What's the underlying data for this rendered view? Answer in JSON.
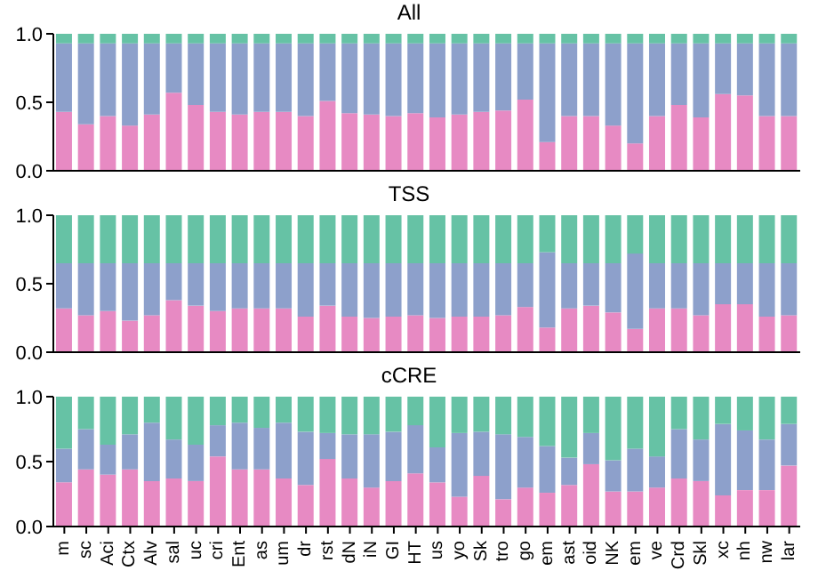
{
  "chart_data": [
    {
      "type": "bar",
      "title": "All",
      "stacked": true,
      "tick_labels": "y",
      "categories": [
        null,
        null,
        null,
        null,
        null,
        null,
        null,
        null,
        null,
        null,
        null,
        null,
        null,
        null,
        null,
        null,
        null,
        null,
        null,
        null,
        null,
        null,
        null,
        null,
        null,
        null,
        null,
        null,
        null,
        null,
        null,
        null,
        null,
        null
      ],
      "ylim": [
        0,
        1
      ],
      "yticks": [
        {
          "value": 0,
          "label": "0.0"
        },
        {
          "value": 0.5,
          "label": "0.5"
        },
        {
          "value": 1,
          "label": "1.0"
        }
      ],
      "series": [
        {
          "color": "#e78ac3",
          "values": [
            0.43,
            0.34,
            0.4,
            0.33,
            0.41,
            0.57,
            0.48,
            0.43,
            0.41,
            0.43,
            0.43,
            0.4,
            0.51,
            0.42,
            0.41,
            0.4,
            0.42,
            0.39,
            0.41,
            0.43,
            0.44,
            0.52,
            0.21,
            0.4,
            0.4,
            0.33,
            0.2,
            0.4,
            0.48,
            0.39,
            0.56,
            0.55,
            0.4,
            0.4
          ]
        },
        {
          "color": "#8da0cb",
          "values": [
            0.5,
            0.59,
            0.53,
            0.6,
            0.52,
            0.36,
            0.45,
            0.5,
            0.52,
            0.5,
            0.5,
            0.53,
            0.42,
            0.51,
            0.52,
            0.53,
            0.51,
            0.54,
            0.52,
            0.5,
            0.49,
            0.41,
            0.72,
            0.53,
            0.53,
            0.6,
            0.73,
            0.53,
            0.45,
            0.54,
            0.37,
            0.38,
            0.53,
            0.53
          ]
        },
        {
          "color": "#66c2a5",
          "values": [
            0.07,
            0.07,
            0.07,
            0.07,
            0.07,
            0.07,
            0.07,
            0.07,
            0.07,
            0.07,
            0.07,
            0.07,
            0.07,
            0.07,
            0.07,
            0.07,
            0.07,
            0.07,
            0.07,
            0.07,
            0.07,
            0.07,
            0.07,
            0.07,
            0.07,
            0.07,
            0.07,
            0.07,
            0.07,
            0.07,
            0.07,
            0.07,
            0.07,
            0.07
          ]
        }
      ]
    },
    {
      "type": "bar",
      "title": "TSS",
      "stacked": true,
      "tick_labels": "y",
      "categories": [
        null,
        null,
        null,
        null,
        null,
        null,
        null,
        null,
        null,
        null,
        null,
        null,
        null,
        null,
        null,
        null,
        null,
        null,
        null,
        null,
        null,
        null,
        null,
        null,
        null,
        null,
        null,
        null,
        null,
        null,
        null,
        null,
        null,
        null
      ],
      "ylim": [
        0,
        1
      ],
      "yticks": [
        {
          "value": 0,
          "label": "0.0"
        },
        {
          "value": 0.5,
          "label": "0.5"
        },
        {
          "value": 1,
          "label": "1.0"
        }
      ],
      "series": [
        {
          "color": "#e78ac3",
          "values": [
            0.32,
            0.27,
            0.3,
            0.23,
            0.27,
            0.38,
            0.34,
            0.3,
            0.32,
            0.32,
            0.32,
            0.26,
            0.34,
            0.26,
            0.25,
            0.26,
            0.27,
            0.25,
            0.26,
            0.26,
            0.27,
            0.33,
            0.18,
            0.32,
            0.34,
            0.29,
            0.17,
            0.32,
            0.32,
            0.27,
            0.35,
            0.35,
            0.26,
            0.27
          ]
        },
        {
          "color": "#8da0cb",
          "values": [
            0.33,
            0.38,
            0.35,
            0.42,
            0.38,
            0.27,
            0.31,
            0.35,
            0.33,
            0.33,
            0.33,
            0.39,
            0.31,
            0.39,
            0.4,
            0.39,
            0.38,
            0.4,
            0.39,
            0.39,
            0.38,
            0.32,
            0.55,
            0.33,
            0.31,
            0.36,
            0.55,
            0.33,
            0.33,
            0.38,
            0.3,
            0.3,
            0.39,
            0.38
          ]
        },
        {
          "color": "#66c2a5",
          "values": [
            0.35,
            0.35,
            0.35,
            0.35,
            0.35,
            0.35,
            0.35,
            0.35,
            0.35,
            0.35,
            0.35,
            0.35,
            0.35,
            0.35,
            0.35,
            0.35,
            0.35,
            0.35,
            0.35,
            0.35,
            0.35,
            0.35,
            0.27,
            0.35,
            0.35,
            0.35,
            0.28,
            0.35,
            0.35,
            0.35,
            0.35,
            0.35,
            0.35,
            0.35
          ]
        }
      ]
    },
    {
      "type": "bar",
      "title": "cCRE",
      "stacked": true,
      "categories": [
        "m",
        "sc",
        "Aci",
        "Ctx",
        "Alv",
        "sal",
        "uc",
        "cri",
        "Ent",
        "as",
        "um",
        "dr",
        "rst",
        "dN",
        "iN",
        "GI",
        "HT",
        "us",
        "yo",
        "Sk",
        "tro",
        "go",
        "em",
        "ast",
        "oid",
        "NK",
        "em",
        "ve",
        "Crd",
        "Skl",
        "xc",
        "nh",
        "nw",
        "lar"
      ],
      "ylim": [
        0,
        1
      ],
      "yticks": [
        {
          "value": 0,
          "label": "0.0"
        },
        {
          "value": 0.5,
          "label": "0.5"
        },
        {
          "value": 1,
          "label": "1.0"
        }
      ],
      "series": [
        {
          "color": "#e78ac3",
          "values": [
            0.34,
            0.44,
            0.4,
            0.44,
            0.35,
            0.37,
            0.35,
            0.54,
            0.44,
            0.44,
            0.37,
            0.32,
            0.52,
            0.37,
            0.3,
            0.35,
            0.41,
            0.34,
            0.23,
            0.39,
            0.21,
            0.3,
            0.26,
            0.32,
            0.48,
            0.27,
            0.27,
            0.3,
            0.37,
            0.35,
            0.24,
            0.28,
            0.28,
            0.47
          ]
        },
        {
          "color": "#8da0cb",
          "values": [
            0.26,
            0.31,
            0.23,
            0.27,
            0.45,
            0.3,
            0.28,
            0.24,
            0.36,
            0.32,
            0.43,
            0.41,
            0.2,
            0.34,
            0.41,
            0.38,
            0.37,
            0.27,
            0.49,
            0.34,
            0.5,
            0.39,
            0.36,
            0.21,
            0.24,
            0.24,
            0.33,
            0.24,
            0.38,
            0.32,
            0.55,
            0.46,
            0.39,
            0.32
          ]
        },
        {
          "color": "#66c2a5",
          "values": [
            0.4,
            0.25,
            0.37,
            0.29,
            0.2,
            0.33,
            0.37,
            0.22,
            0.2,
            0.24,
            0.2,
            0.27,
            0.28,
            0.29,
            0.29,
            0.27,
            0.22,
            0.39,
            0.28,
            0.27,
            0.29,
            0.31,
            0.38,
            0.47,
            0.28,
            0.49,
            0.4,
            0.46,
            0.25,
            0.33,
            0.21,
            0.26,
            0.33,
            0.21
          ]
        }
      ]
    }
  ]
}
